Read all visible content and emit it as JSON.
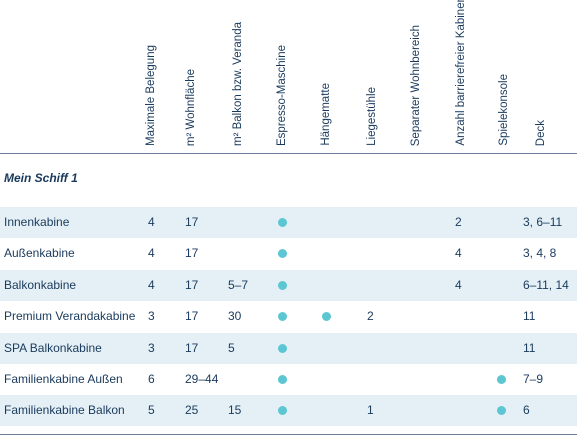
{
  "columns": [
    "Maximale Belegung",
    "m² Wohnfläche",
    "m² Balkon bzw. Veranda",
    "Espresso-Maschine",
    "Hängematte",
    "Liegestühle",
    "Separater Wohnbereich",
    "Anzahl barrierefreier Kabinen",
    "Spielekonsole",
    "Deck"
  ],
  "section_title": "Mein Schiff 1",
  "rows": [
    {
      "name": "Innenkabine",
      "belegung": "4",
      "wohnflaeche": "17",
      "balkon": "",
      "espresso": true,
      "haengematte": false,
      "liegestuehle": "",
      "separat": false,
      "barrierefrei": "2",
      "spielekonsole": false,
      "deck": "3, 6–11"
    },
    {
      "name": "Außenkabine",
      "belegung": "4",
      "wohnflaeche": "17",
      "balkon": "",
      "espresso": true,
      "haengematte": false,
      "liegestuehle": "",
      "separat": false,
      "barrierefrei": "4",
      "spielekonsole": false,
      "deck": "3, 4, 8"
    },
    {
      "name": "Balkonkabine",
      "belegung": "4",
      "wohnflaeche": "17",
      "balkon": "5–7",
      "espresso": true,
      "haengematte": false,
      "liegestuehle": "",
      "separat": false,
      "barrierefrei": "4",
      "spielekonsole": false,
      "deck": "6–11, 14"
    },
    {
      "name": "Premium Verandakabine",
      "belegung": "3",
      "wohnflaeche": "17",
      "balkon": "30",
      "espresso": true,
      "haengematte": true,
      "liegestuehle": "2",
      "separat": false,
      "barrierefrei": "",
      "spielekonsole": false,
      "deck": "11"
    },
    {
      "name": "SPA Balkonkabine",
      "belegung": "3",
      "wohnflaeche": "17",
      "balkon": "5",
      "espresso": true,
      "haengematte": false,
      "liegestuehle": "",
      "separat": false,
      "barrierefrei": "",
      "spielekonsole": false,
      "deck": "11"
    },
    {
      "name": "Familienkabine Außen",
      "belegung": "6",
      "wohnflaeche": "29–44",
      "balkon": "",
      "espresso": true,
      "haengematte": false,
      "liegestuehle": "",
      "separat": false,
      "barrierefrei": "",
      "spielekonsole": true,
      "deck": "7–9"
    },
    {
      "name": "Familienkabine Balkon",
      "belegung": "5",
      "wohnflaeche": "25",
      "balkon": "15",
      "espresso": true,
      "haengematte": false,
      "liegestuehle": "1",
      "separat": false,
      "barrierefrei": "",
      "spielekonsole": true,
      "deck": "6"
    }
  ],
  "colors": {
    "text": "#1a3a5c",
    "row_alt": "#e4f0f6",
    "dot": "#5cc6d3",
    "rule": "#6b7f96"
  }
}
